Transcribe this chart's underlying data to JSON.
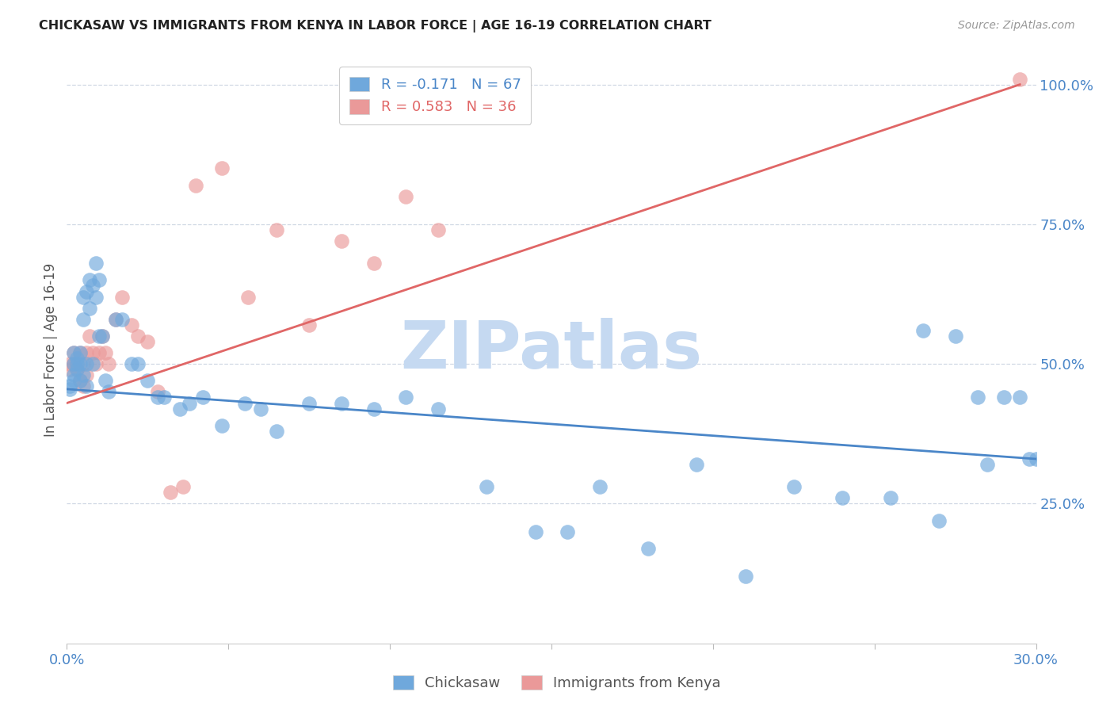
{
  "title": "CHICKASAW VS IMMIGRANTS FROM KENYA IN LABOR FORCE | AGE 16-19 CORRELATION CHART",
  "source": "Source: ZipAtlas.com",
  "ylabel": "In Labor Force | Age 16-19",
  "xlim": [
    0.0,
    0.3
  ],
  "ylim": [
    0.0,
    1.05
  ],
  "xtick_vals": [
    0.0,
    0.05,
    0.1,
    0.15,
    0.2,
    0.25,
    0.3
  ],
  "xtick_labels": [
    "0.0%",
    "",
    "",
    "",
    "",
    "",
    "30.0%"
  ],
  "ytick_vals": [
    0.25,
    0.5,
    0.75,
    1.0
  ],
  "ytick_labels": [
    "25.0%",
    "50.0%",
    "75.0%",
    "100.0%"
  ],
  "blue_color": "#6fa8dc",
  "pink_color": "#ea9999",
  "blue_line_color": "#4a86c8",
  "pink_line_color": "#e06666",
  "R_blue": -0.171,
  "N_blue": 67,
  "R_pink": 0.583,
  "N_pink": 36,
  "watermark": "ZIPatlas",
  "watermark_color": "#c5d9f1",
  "grid_color": "#d0d8e4",
  "blue_scatter_x": [
    0.001,
    0.001,
    0.002,
    0.002,
    0.002,
    0.002,
    0.003,
    0.003,
    0.003,
    0.004,
    0.004,
    0.004,
    0.005,
    0.005,
    0.005,
    0.006,
    0.006,
    0.006,
    0.007,
    0.007,
    0.008,
    0.008,
    0.009,
    0.009,
    0.01,
    0.01,
    0.011,
    0.012,
    0.013,
    0.015,
    0.017,
    0.02,
    0.022,
    0.025,
    0.028,
    0.03,
    0.035,
    0.038,
    0.042,
    0.048,
    0.055,
    0.06,
    0.065,
    0.075,
    0.085,
    0.095,
    0.105,
    0.115,
    0.13,
    0.145,
    0.155,
    0.165,
    0.18,
    0.195,
    0.21,
    0.225,
    0.24,
    0.255,
    0.265,
    0.275,
    0.282,
    0.29,
    0.295,
    0.298,
    0.3,
    0.285,
    0.27
  ],
  "blue_scatter_y": [
    0.455,
    0.46,
    0.5,
    0.48,
    0.52,
    0.47,
    0.5,
    0.49,
    0.51,
    0.52,
    0.5,
    0.47,
    0.62,
    0.58,
    0.48,
    0.63,
    0.5,
    0.46,
    0.65,
    0.6,
    0.64,
    0.5,
    0.68,
    0.62,
    0.65,
    0.55,
    0.55,
    0.47,
    0.45,
    0.58,
    0.58,
    0.5,
    0.5,
    0.47,
    0.44,
    0.44,
    0.42,
    0.43,
    0.44,
    0.39,
    0.43,
    0.42,
    0.38,
    0.43,
    0.43,
    0.42,
    0.44,
    0.42,
    0.28,
    0.2,
    0.2,
    0.28,
    0.17,
    0.32,
    0.12,
    0.28,
    0.26,
    0.26,
    0.56,
    0.55,
    0.44,
    0.44,
    0.44,
    0.33,
    0.33,
    0.32,
    0.22
  ],
  "pink_scatter_x": [
    0.001,
    0.001,
    0.002,
    0.002,
    0.003,
    0.004,
    0.004,
    0.005,
    0.005,
    0.006,
    0.006,
    0.007,
    0.008,
    0.009,
    0.01,
    0.011,
    0.012,
    0.013,
    0.015,
    0.017,
    0.02,
    0.022,
    0.025,
    0.028,
    0.032,
    0.036,
    0.04,
    0.048,
    0.056,
    0.065,
    0.075,
    0.085,
    0.095,
    0.105,
    0.115,
    0.295
  ],
  "pink_scatter_y": [
    0.5,
    0.49,
    0.5,
    0.52,
    0.49,
    0.52,
    0.47,
    0.5,
    0.46,
    0.52,
    0.48,
    0.55,
    0.52,
    0.5,
    0.52,
    0.55,
    0.52,
    0.5,
    0.58,
    0.62,
    0.57,
    0.55,
    0.54,
    0.45,
    0.27,
    0.28,
    0.82,
    0.85,
    0.62,
    0.74,
    0.57,
    0.72,
    0.68,
    0.8,
    0.74,
    1.01
  ],
  "blue_trend_x": [
    0.0,
    0.3
  ],
  "blue_trend_y": [
    0.455,
    0.33
  ],
  "pink_trend_x": [
    0.0,
    0.295
  ],
  "pink_trend_y": [
    0.43,
    1.0
  ]
}
